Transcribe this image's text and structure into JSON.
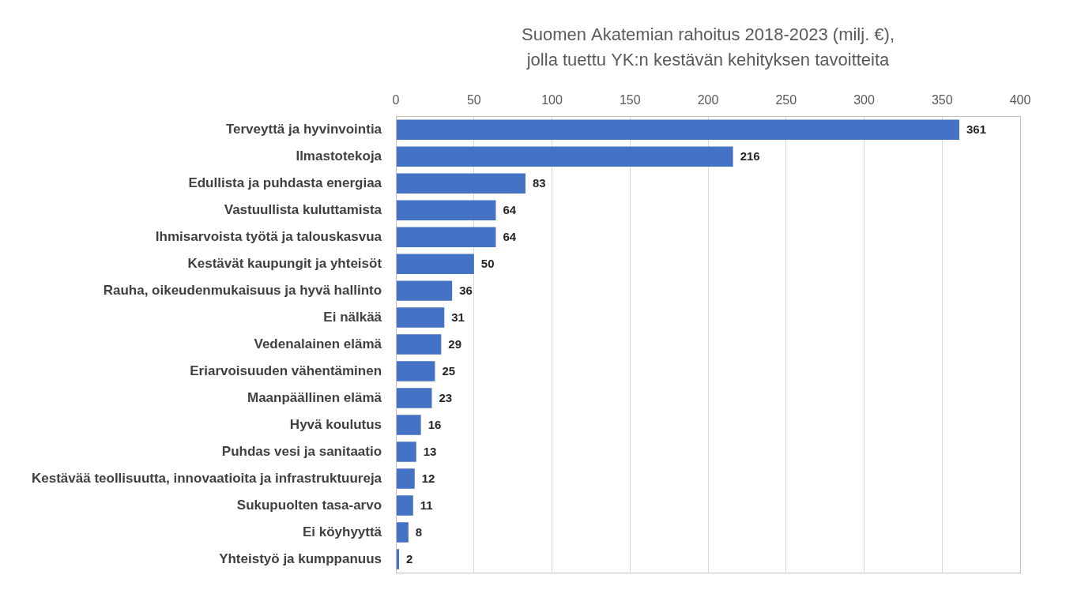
{
  "chart_data": {
    "type": "bar",
    "orientation": "horizontal",
    "title": [
      "Suomen Akatemian rahoitus 2018-2023 (milj. €),",
      "jolla tuettu YK:n kestävän kehityksen tavoitteita"
    ],
    "categories": [
      "Terveyttä ja hyvinvointia",
      "Ilmastotekoja",
      "Edullista ja puhdasta energiaa",
      "Vastuullista kuluttamista",
      "Ihmisarvoista työtä ja talouskasvua",
      "Kestävät kaupungit ja yhteisöt",
      "Rauha, oikeudenmukaisuus ja hyvä hallinto",
      "Ei nälkää",
      "Vedenalainen elämä",
      "Eriarvoisuuden vähentäminen",
      "Maanpäällinen elämä",
      "Hyvä koulutus",
      "Puhdas vesi ja sanitaatio",
      "Kestävää teollisuutta, innovaatioita ja infrastruktuureja",
      "Sukupuolten tasa-arvo",
      "Ei köyhyyttä",
      "Yhteistyö ja kumppanuus"
    ],
    "values": [
      361,
      216,
      83,
      64,
      64,
      50,
      36,
      31,
      29,
      25,
      23,
      16,
      13,
      12,
      11,
      8,
      2
    ],
    "color": "#4472c4",
    "xlim": [
      0,
      400
    ],
    "xticks": [
      0,
      50,
      100,
      150,
      200,
      250,
      300,
      350,
      400
    ],
    "grid": true,
    "data_labels": true
  }
}
